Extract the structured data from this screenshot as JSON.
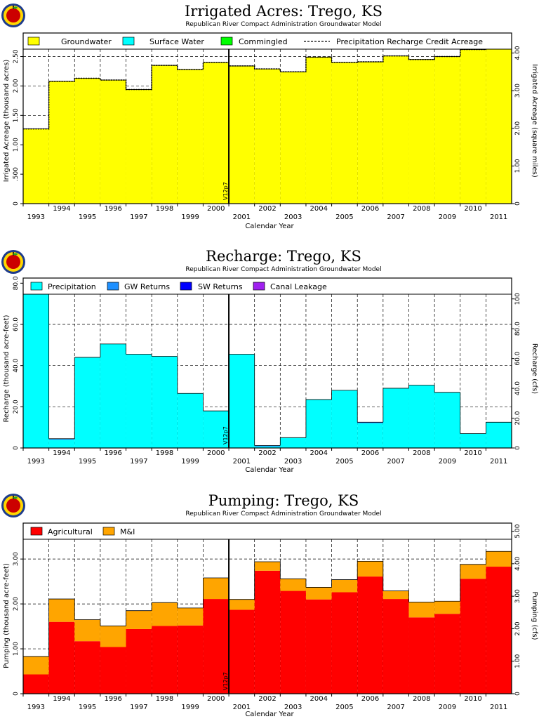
{
  "charts": [
    {
      "title": "Irrigated Acres: Trego, KS",
      "subtitle": "Republican River Compact Administration Groundwater Model",
      "xlabel": "Calendar Year",
      "ylabel": "Irrigated Acreage (thousand acres)",
      "y2label": "Irrigated Acreage (square miles)",
      "marker_label": "V12p7",
      "legend": [
        "Groundwater",
        "Surface Water",
        "Commingled",
        "Precipitation Recharge Credit Acreage"
      ]
    },
    {
      "title": "Recharge: Trego, KS",
      "subtitle": "Republican River Compact Administration Groundwater Model",
      "xlabel": "Calendar Year",
      "ylabel": "Recharge (thousand acre-feet)",
      "y2label": "Recharge (cfs)",
      "marker_label": "V12p7",
      "legend": [
        "Precipitation",
        "GW Returns",
        "SW Returns",
        "Canal Leakage"
      ]
    },
    {
      "title": "Pumping: Trego, KS",
      "subtitle": "Republican River Compact Administration Groundwater Model",
      "xlabel": "Calendar Year",
      "ylabel": "Pumping (thousand acre-feet)",
      "y2label": "Pumping (cfs)",
      "marker_label": "V12p7",
      "legend": [
        "Agricultural",
        "M&I"
      ]
    }
  ],
  "chart_data": [
    {
      "type": "bar",
      "stacked": true,
      "title": "Irrigated Acres: Trego, KS",
      "subtitle": "Republican River Compact Administration Groundwater Model",
      "xlabel": "Calendar Year",
      "ylabel": "Irrigated Acreage (thousand acres)",
      "y2label": "Irrigated Acreage (square miles)",
      "categories": [
        "1993",
        "1994",
        "1995",
        "1996",
        "1997",
        "1998",
        "1999",
        "2000",
        "2001",
        "2002",
        "2003",
        "2004",
        "2005",
        "2006",
        "2007",
        "2008",
        "2009",
        "2010",
        "2011"
      ],
      "series": [
        {
          "name": "Groundwater",
          "color": "#ffff00",
          "values": [
            1.27,
            2.08,
            2.13,
            2.1,
            1.94,
            2.35,
            2.28,
            2.4,
            2.34,
            2.29,
            2.24,
            2.49,
            2.4,
            2.41,
            2.51,
            2.45,
            2.5,
            2.62,
            2.65
          ]
        },
        {
          "name": "Surface Water",
          "color": "#00ffff",
          "values": [
            0,
            0,
            0,
            0,
            0,
            0,
            0,
            0,
            0,
            0,
            0,
            0,
            0,
            0,
            0,
            0,
            0,
            0,
            0
          ]
        },
        {
          "name": "Commingled",
          "color": "#00ff00",
          "values": [
            0,
            0,
            0,
            0,
            0,
            0,
            0,
            0,
            0,
            0,
            0,
            0,
            0,
            0,
            0,
            0,
            0,
            0,
            0
          ]
        }
      ],
      "line_series": {
        "name": "Precipitation Recharge Credit Acreage",
        "values": [
          1.27,
          2.08,
          2.13,
          2.1,
          1.94,
          2.35,
          2.28,
          2.4,
          2.34,
          2.29,
          2.24,
          2.49,
          2.4,
          2.41,
          2.51,
          2.45,
          2.5,
          2.62,
          2.65
        ]
      },
      "yticks": [
        {
          "v": 0.0,
          "label": "0"
        },
        {
          "v": 0.5,
          "label": ".500"
        },
        {
          "v": 1.0,
          "label": "1.00"
        },
        {
          "v": 1.5,
          "label": "1.50"
        },
        {
          "v": 2.0,
          "label": "2.00"
        },
        {
          "v": 2.5,
          "label": "2.50"
        }
      ],
      "y2ticks": [
        {
          "v": 0,
          "label": "0"
        },
        {
          "v": 1,
          "label": "1.00"
        },
        {
          "v": 2,
          "label": "2.00"
        },
        {
          "v": 3,
          "label": "3.00"
        },
        {
          "v": 4,
          "label": "4.00"
        }
      ],
      "ylim": [
        0,
        2.9
      ],
      "y2lim": [
        0,
        4.531
      ],
      "marker": {
        "after": "2000",
        "label": "V12p7"
      },
      "legend_position": "top",
      "grid": true
    },
    {
      "type": "bar",
      "stacked": true,
      "title": "Recharge: Trego, KS",
      "subtitle": "Republican River Compact Administration Groundwater Model",
      "xlabel": "Calendar Year",
      "ylabel": "Recharge (thousand acre-feet)",
      "y2label": "Recharge (cfs)",
      "categories": [
        "1993",
        "1994",
        "1995",
        "1996",
        "1997",
        "1998",
        "1999",
        "2000",
        "2001",
        "2002",
        "2003",
        "2004",
        "2005",
        "2006",
        "2007",
        "2008",
        "2009",
        "2010",
        "2011"
      ],
      "series": [
        {
          "name": "Precipitation",
          "color": "#00ffff",
          "values": [
            82.0,
            4.0,
            44.0,
            50.5,
            45.5,
            44.5,
            26.5,
            18.0,
            45.5,
            0.7,
            5.0,
            23.5,
            28.0,
            12.0,
            29.0,
            30.5,
            27.0,
            7.0,
            12.5
          ]
        },
        {
          "name": "GW Returns",
          "color": "#1e90ff",
          "values": [
            0,
            0.5,
            0,
            0,
            0,
            0,
            0,
            0,
            0,
            0.5,
            0,
            0,
            0,
            0.5,
            0,
            0,
            0,
            0,
            0
          ]
        },
        {
          "name": "SW Returns",
          "color": "#0000ff",
          "values": [
            0,
            0,
            0,
            0,
            0,
            0,
            0,
            0,
            0,
            0,
            0,
            0,
            0,
            0,
            0,
            0,
            0,
            0,
            0
          ]
        },
        {
          "name": "Canal Leakage",
          "color": "#a020f0",
          "values": [
            0,
            0,
            0,
            0,
            0,
            0,
            0,
            0,
            0,
            0,
            0,
            0,
            0,
            0,
            0,
            0,
            0,
            0,
            0
          ]
        }
      ],
      "yticks": [
        {
          "v": 0,
          "label": "0"
        },
        {
          "v": 20,
          "label": "20.0"
        },
        {
          "v": 40,
          "label": "40.0"
        },
        {
          "v": 60,
          "label": "60.0"
        },
        {
          "v": 80,
          "label": "80.0"
        }
      ],
      "y2ticks": [
        {
          "v": 0,
          "label": "0"
        },
        {
          "v": 20,
          "label": "20.0"
        },
        {
          "v": 40,
          "label": "40.0"
        },
        {
          "v": 60,
          "label": "60.0"
        },
        {
          "v": 80,
          "label": "80.0"
        },
        {
          "v": 100,
          "label": "100"
        }
      ],
      "ylim": [
        0,
        82.5
      ],
      "y2lim": [
        0,
        114
      ],
      "marker": {
        "after": "2000",
        "label": "V12p7"
      },
      "legend_position": "top",
      "grid": true
    },
    {
      "type": "bar",
      "stacked": true,
      "title": "Pumping: Trego, KS",
      "subtitle": "Republican River Compact Administration Groundwater Model",
      "xlabel": "Calendar Year",
      "ylabel": "Pumping (thousand acre-feet)",
      "y2label": "Pumping (cfs)",
      "categories": [
        "1993",
        "1994",
        "1995",
        "1996",
        "1997",
        "1998",
        "1999",
        "2000",
        "2001",
        "2002",
        "2003",
        "2004",
        "2005",
        "2006",
        "2007",
        "2008",
        "2009",
        "2010",
        "2011"
      ],
      "series": [
        {
          "name": "Agricultural",
          "color": "#ff0000",
          "values": [
            0.43,
            1.6,
            1.17,
            1.04,
            1.44,
            1.51,
            1.52,
            2.11,
            1.87,
            2.74,
            2.29,
            2.1,
            2.26,
            2.61,
            2.11,
            1.7,
            1.78,
            2.56,
            2.83
          ]
        },
        {
          "name": "M&I",
          "color": "#ffa500",
          "values": [
            0.4,
            0.51,
            0.48,
            0.47,
            0.41,
            0.52,
            0.39,
            0.47,
            0.23,
            0.2,
            0.27,
            0.27,
            0.28,
            0.34,
            0.18,
            0.34,
            0.28,
            0.32,
            0.34
          ]
        }
      ],
      "yticks": [
        {
          "v": 0,
          "label": "0"
        },
        {
          "v": 1,
          "label": "1.00"
        },
        {
          "v": 2,
          "label": "2.00"
        },
        {
          "v": 3,
          "label": "3.00"
        }
      ],
      "y2ticks": [
        {
          "v": 0,
          "label": "0"
        },
        {
          "v": 1,
          "label": "1.00"
        },
        {
          "v": 2,
          "label": "2.00"
        },
        {
          "v": 3,
          "label": "3.00"
        },
        {
          "v": 4,
          "label": "4.00"
        },
        {
          "v": 5,
          "label": "5.00"
        }
      ],
      "ylim": [
        0,
        3.8
      ],
      "y2lim": [
        0,
        5.25
      ],
      "marker": {
        "after": "2000",
        "label": "V12p7"
      },
      "legend_position": "top",
      "grid": true
    }
  ]
}
